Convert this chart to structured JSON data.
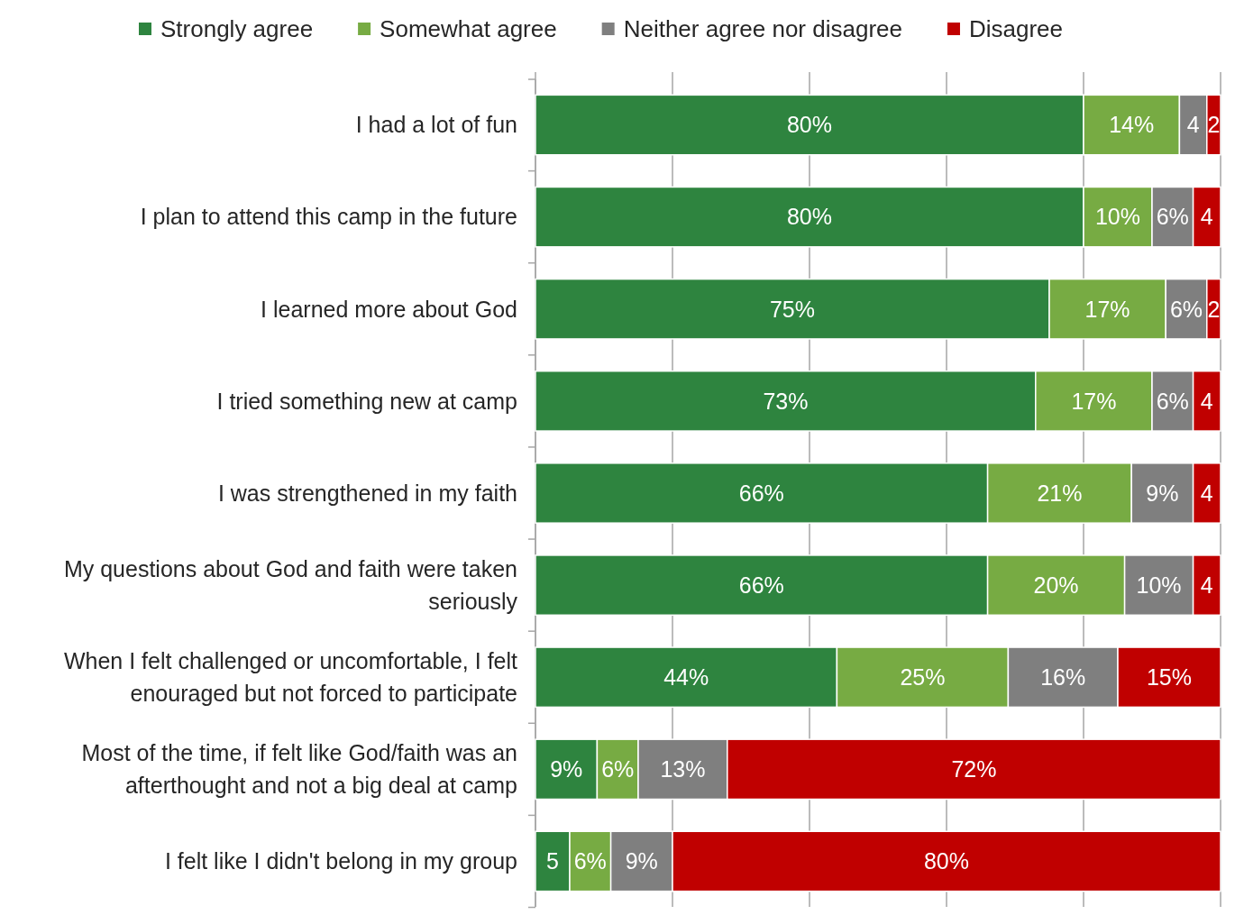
{
  "chart_data": {
    "type": "bar",
    "orientation": "horizontal",
    "stacked": true,
    "categories": [
      "I had a lot of fun",
      "I plan to attend this camp in the future",
      "I learned more about God",
      "I tried something new at camp",
      "I was strengthened in my faith",
      "My questions about God and faith were taken seriously",
      "When I felt challenged or uncomfortable, I felt enouraged but not forced to participate",
      "Most of the time, if felt like God/faith was an afterthought and not a big deal at camp",
      "I felt like I didn't belong in my group"
    ],
    "series": [
      {
        "name": "Strongly agree",
        "color": "#2e843f",
        "values": [
          80,
          80,
          75,
          73,
          66,
          66,
          44,
          9,
          5
        ],
        "value_labels": [
          "80%",
          "80%",
          "75%",
          "73%",
          "66%",
          "66%",
          "44%",
          "9%",
          "5"
        ]
      },
      {
        "name": "Somewhat agree",
        "color": "#77ab43",
        "values": [
          14,
          10,
          17,
          17,
          21,
          20,
          25,
          6,
          6
        ],
        "value_labels": [
          "14%",
          "10%",
          "17%",
          "17%",
          "21%",
          "20%",
          "25%",
          "6%",
          "6%"
        ]
      },
      {
        "name": "Neither agree nor disagree",
        "color": "#7f7f7f",
        "values": [
          4,
          6,
          6,
          6,
          9,
          10,
          16,
          13,
          9
        ],
        "value_labels": [
          "4",
          "6%",
          "6%",
          "6%",
          "9%",
          "10%",
          "16%",
          "13%",
          "9%"
        ]
      },
      {
        "name": "Disagree",
        "color": "#c00000",
        "values": [
          2,
          4,
          2,
          4,
          4,
          4,
          15,
          72,
          80
        ],
        "value_labels": [
          "2",
          "4",
          "2",
          "4",
          "4",
          "4",
          "15%",
          "72%",
          "80%"
        ]
      }
    ],
    "xlim": [
      0,
      100
    ],
    "xticks": [
      {
        "value": 0,
        "label": null
      },
      {
        "value": 20,
        "label": null
      },
      {
        "value": 40,
        "label": null
      },
      {
        "value": 60,
        "label": null
      },
      {
        "value": 80,
        "label": null
      },
      {
        "value": 100,
        "label": null
      }
    ],
    "tick_labels": "y",
    "grid": "x",
    "legend": "top"
  }
}
